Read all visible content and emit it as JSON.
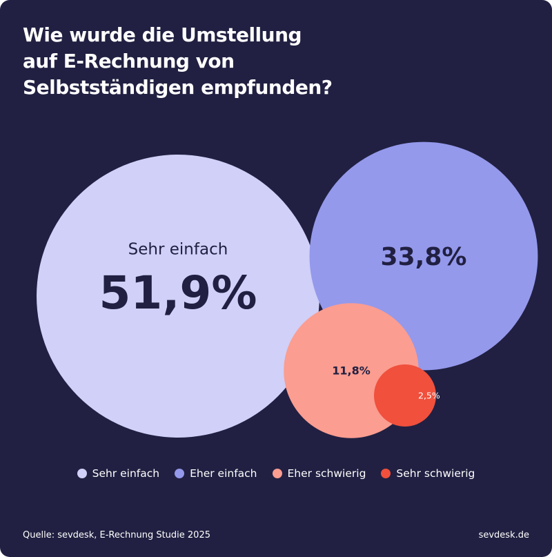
{
  "title_lines": [
    "Wie wurde die Umstellung",
    "auf E-Rechnung von",
    "Selbstständigen empfunden?"
  ],
  "chart_data": {
    "type": "bubble",
    "title": "Wie wurde die Umstellung auf E-Rechnung von Selbstständigen empfunden?",
    "unit": "%",
    "categories": [
      "Sehr einfach",
      "Eher einfach",
      "Eher schwierig",
      "Sehr schwierig"
    ],
    "values": [
      51.9,
      33.8,
      11.8,
      2.5
    ],
    "value_labels": [
      "51,9%",
      "33,8%",
      "11,8%",
      "2,5%"
    ],
    "inner_category_label": "Sehr einfach",
    "colors": [
      "#D0D0F8",
      "#9499EC",
      "#FB9D90",
      "#F0503C"
    ],
    "legend_position": "bottom-center"
  },
  "footer": {
    "source": "Quelle: sevdesk, E-Rechnung Studie 2025",
    "brand": "sevdesk.de"
  },
  "colors": {
    "background": "#212042",
    "text_light": "#ffffff",
    "text_dark": "#212042"
  }
}
